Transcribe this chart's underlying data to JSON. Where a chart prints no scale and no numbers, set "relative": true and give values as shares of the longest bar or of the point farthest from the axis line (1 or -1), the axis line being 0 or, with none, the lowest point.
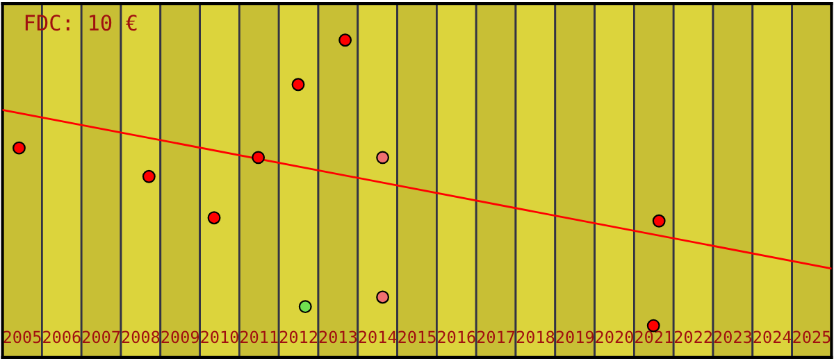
{
  "chart_data": {
    "type": "scatter",
    "title": "FDC: 10 €",
    "relative": true,
    "xlim": [
      2004.5,
      2025.5
    ],
    "xticks": [
      2005,
      2006,
      2007,
      2008,
      2009,
      2010,
      2011,
      2012,
      2013,
      2014,
      2015,
      2016,
      2017,
      2018,
      2019,
      2020,
      2021,
      2022,
      2023,
      2024,
      2025
    ],
    "grid": false,
    "legend": false,
    "series": [
      {
        "marker": "circle",
        "x": [
          2004.92,
          2008.21,
          2009.86,
          2010.98,
          2011.99,
          2013.18,
          2014.13,
          2012.17,
          2014.13,
          2021.13,
          2020.99
        ],
        "values": [
          0.66,
          0.57,
          0.44,
          0.63,
          0.86,
          1,
          0.63,
          0.16,
          0.19,
          0.43,
          0.1
        ],
        "colors": [
          "#ff0000",
          "#ff0000",
          "#ff0000",
          "#ff0000",
          "#ff0000",
          "#ff0000",
          "#f07070",
          "#70e050",
          "#f07070",
          "#ff0000",
          "#ff0000"
        ]
      },
      {
        "type": "line",
        "x": [
          2004.5,
          2025.5
        ],
        "values": [
          0.78,
          0.28
        ],
        "color": "#ff0000"
      }
    ],
    "bands": [
      {
        "axis": "x",
        "from": 2004.5,
        "to": 2005.5,
        "color": "#c8bf35"
      },
      {
        "axis": "x",
        "from": 2005.5,
        "to": 2006.5,
        "color": "#dcd43c"
      },
      {
        "axis": "x",
        "from": 2006.5,
        "to": 2007.5,
        "color": "#c8bf35"
      },
      {
        "axis": "x",
        "from": 2007.5,
        "to": 2008.5,
        "color": "#dcd43c"
      },
      {
        "axis": "x",
        "from": 2008.5,
        "to": 2009.5,
        "color": "#c8bf35"
      },
      {
        "axis": "x",
        "from": 2009.5,
        "to": 2010.5,
        "color": "#dcd43c"
      },
      {
        "axis": "x",
        "from": 2010.5,
        "to": 2011.5,
        "color": "#c8bf35"
      },
      {
        "axis": "x",
        "from": 2011.5,
        "to": 2012.5,
        "color": "#dcd43c"
      },
      {
        "axis": "x",
        "from": 2012.5,
        "to": 2013.5,
        "color": "#c8bf35"
      },
      {
        "axis": "x",
        "from": 2013.5,
        "to": 2014.5,
        "color": "#dcd43c"
      },
      {
        "axis": "x",
        "from": 2014.5,
        "to": 2015.5,
        "color": "#c8bf35"
      },
      {
        "axis": "x",
        "from": 2015.5,
        "to": 2016.5,
        "color": "#dcd43c"
      },
      {
        "axis": "x",
        "from": 2016.5,
        "to": 2017.5,
        "color": "#c8bf35"
      },
      {
        "axis": "x",
        "from": 2017.5,
        "to": 2018.5,
        "color": "#dcd43c"
      },
      {
        "axis": "x",
        "from": 2018.5,
        "to": 2019.5,
        "color": "#c8bf35"
      },
      {
        "axis": "x",
        "from": 2019.5,
        "to": 2020.5,
        "color": "#dcd43c"
      },
      {
        "axis": "x",
        "from": 2020.5,
        "to": 2021.5,
        "color": "#c8bf35"
      },
      {
        "axis": "x",
        "from": 2021.5,
        "to": 2022.5,
        "color": "#dcd43c"
      },
      {
        "axis": "x",
        "from": 2022.5,
        "to": 2023.5,
        "color": "#c8bf35"
      },
      {
        "axis": "x",
        "from": 2023.5,
        "to": 2024.5,
        "color": "#dcd43c"
      },
      {
        "axis": "x",
        "from": 2024.5,
        "to": 2025.5,
        "color": "#c8bf35"
      }
    ]
  }
}
